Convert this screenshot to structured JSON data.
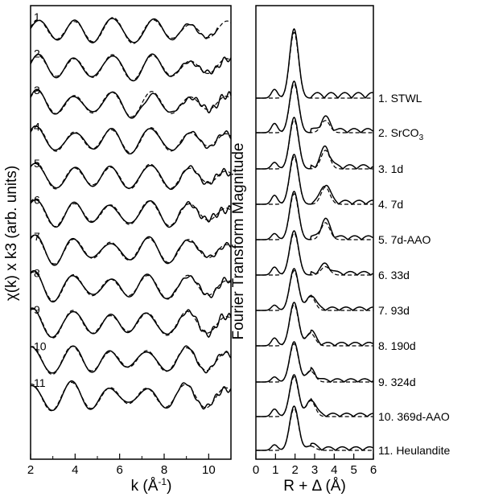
{
  "colors": {
    "line": "#000000",
    "background": "#ffffff"
  },
  "chart_data": [
    {
      "type": "line",
      "panel": "left",
      "xlabel_main": "k (Å",
      "xlabel_sup": "-1",
      "xlabel_end": ")",
      "ylabel": "χ(k) x k3 (arb. units)",
      "xlim": [
        2,
        11
      ],
      "x_ticks": [
        2,
        4,
        6,
        8,
        10
      ],
      "line_styles": [
        "solid",
        "dashed"
      ],
      "spectrum_labels": [
        "1",
        "2",
        "3",
        "4",
        "5",
        "6",
        "7",
        "8",
        "9",
        "10",
        "11"
      ]
    },
    {
      "type": "line",
      "panel": "right",
      "xlabel": "R + Δ (Å)",
      "ylabel": "Fourier Transform Magnitude",
      "xlim": [
        0,
        6
      ],
      "x_ticks": [
        0,
        1,
        2,
        3,
        4,
        5,
        6
      ],
      "line_styles": [
        "solid",
        "dashed"
      ],
      "main_peak_R": 1.95,
      "samples": [
        {
          "label": "1. STWL"
        },
        {
          "label": "2. SrCO",
          "sub": "3"
        },
        {
          "label": "3. 1d"
        },
        {
          "label": "4. 7d"
        },
        {
          "label": "5. 7d-AAO"
        },
        {
          "label": "6. 33d"
        },
        {
          "label": "7. 93d"
        },
        {
          "label": "8. 190d"
        },
        {
          "label": "9. 324d"
        },
        {
          "label": "10. 369d-AAO"
        },
        {
          "label": "11. Heulandite"
        }
      ]
    }
  ]
}
